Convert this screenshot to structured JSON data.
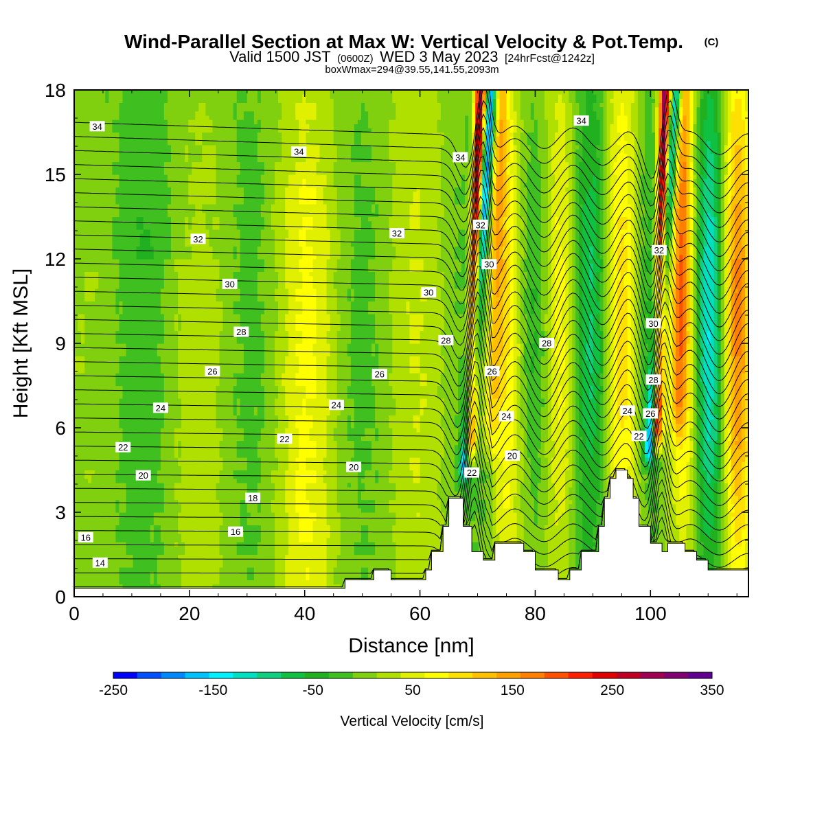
{
  "header": {
    "title": "Wind-Parallel Section at Max W: Vertical Velocity & Pot.Temp.",
    "title_mark": "(C)",
    "valid_prefix": "Valid 1500 JST",
    "valid_zulu": "(0600Z)",
    "valid_date": "WED 3 May 2023",
    "forecast": "[24hrFcst@1242z]",
    "boxinfo": "boxWmax=294@39.55,141.55,2093m"
  },
  "chart_data": {
    "type": "heatmap",
    "title": "Wind-Parallel Section at Max W: Vertical Velocity & Pot.Temp.",
    "xlabel": "Distance [nm]",
    "ylabel": "Height [Kft MSL]",
    "xlim": [
      0,
      117
    ],
    "ylim": [
      0,
      18
    ],
    "x_ticks": [
      "0",
      "20",
      "40",
      "60",
      "80",
      "100"
    ],
    "y_ticks": [
      "0",
      "3",
      "6",
      "9",
      "12",
      "15",
      "18"
    ],
    "x_tick_values": [
      0,
      20,
      40,
      60,
      80,
      100
    ],
    "y_tick_values": [
      0,
      3,
      6,
      9,
      12,
      15,
      18
    ],
    "colorbar": {
      "label": "Vertical Velocity [cm/s]",
      "tick_labels": [
        "-250",
        "-150",
        "-50",
        "50",
        "150",
        "250",
        "350"
      ],
      "min": -250,
      "max": 350,
      "colors": [
        "#0000ff",
        "#0050ff",
        "#0088ff",
        "#00c0ff",
        "#00f0ff",
        "#00e0c0",
        "#10d080",
        "#10c040",
        "#20b020",
        "#40c020",
        "#80d010",
        "#b0e000",
        "#e0f000",
        "#ffff00",
        "#ffe000",
        "#ffc000",
        "#ffa000",
        "#ff8000",
        "#ff5000",
        "#ff2000",
        "#e00000",
        "#c00020",
        "#a00050",
        "#800070",
        "#600090"
      ]
    },
    "terrain": [
      [
        0,
        0.3
      ],
      [
        47,
        0.3
      ],
      [
        47,
        0.6
      ],
      [
        52,
        0.6
      ],
      [
        52,
        0.95
      ],
      [
        55,
        0.95
      ],
      [
        55,
        0.6
      ],
      [
        61,
        0.6
      ],
      [
        61,
        0.95
      ],
      [
        62,
        0.95
      ],
      [
        62,
        1.6
      ],
      [
        64,
        1.6
      ],
      [
        64,
        2.5
      ],
      [
        65,
        2.5
      ],
      [
        65,
        3.5
      ],
      [
        66.5,
        3.5
      ],
      [
        66.5,
        3.5
      ],
      [
        67.5,
        3.5
      ],
      [
        67.5,
        2.5
      ],
      [
        69,
        2.5
      ],
      [
        69,
        1.6
      ],
      [
        71,
        1.6
      ],
      [
        71,
        1.3
      ],
      [
        73,
        1.3
      ],
      [
        73,
        1.9
      ],
      [
        78,
        1.9
      ],
      [
        78,
        1.6
      ],
      [
        80,
        1.6
      ],
      [
        80,
        0.95
      ],
      [
        84,
        0.95
      ],
      [
        84,
        0.6
      ],
      [
        86,
        0.6
      ],
      [
        86,
        0.95
      ],
      [
        88,
        0.95
      ],
      [
        88,
        1.6
      ],
      [
        91,
        1.6
      ],
      [
        91,
        2.5
      ],
      [
        92,
        2.5
      ],
      [
        92,
        3.5
      ],
      [
        93,
        3.5
      ],
      [
        93,
        4.2
      ],
      [
        94,
        4.2
      ],
      [
        94,
        4.5
      ],
      [
        96,
        4.5
      ],
      [
        96,
        4.2
      ],
      [
        97,
        4.2
      ],
      [
        97,
        3.5
      ],
      [
        98,
        3.5
      ],
      [
        98,
        2.5
      ],
      [
        100,
        2.5
      ],
      [
        100,
        1.9
      ],
      [
        102,
        1.9
      ],
      [
        102,
        1.6
      ],
      [
        103,
        1.6
      ],
      [
        103,
        1.9
      ],
      [
        106,
        1.9
      ],
      [
        106,
        1.6
      ],
      [
        108,
        1.6
      ],
      [
        108,
        1.3
      ],
      [
        110,
        1.3
      ],
      [
        110,
        0.95
      ],
      [
        117,
        0.95
      ]
    ],
    "updrafts": [
      {
        "x_top": 70.5,
        "x_bottom": 68.5,
        "y_bottom": 4.3,
        "peak": 300
      },
      {
        "x_top": 102.5,
        "x_bottom": 101,
        "y_bottom": 4.8,
        "peak": 294
      }
    ],
    "downdrafts": [
      {
        "x_top": 72.5,
        "x_bottom": 67.5,
        "y_bottom": 3.7,
        "peak": -210
      },
      {
        "x_top": 104.5,
        "x_bottom": 99.5,
        "y_bottom": 4.3,
        "peak": -180
      }
    ],
    "isentrope_labels": [
      {
        "text": "34",
        "x": 4,
        "y": 16.7
      },
      {
        "text": "34",
        "x": 39,
        "y": 15.8
      },
      {
        "text": "34",
        "x": 67,
        "y": 15.6
      },
      {
        "text": "34",
        "x": 88,
        "y": 16.9
      },
      {
        "text": "32",
        "x": 21.5,
        "y": 12.7
      },
      {
        "text": "32",
        "x": 56,
        "y": 12.9
      },
      {
        "text": "32",
        "x": 70.5,
        "y": 13.2
      },
      {
        "text": "32",
        "x": 101.5,
        "y": 12.3
      },
      {
        "text": "30",
        "x": 27,
        "y": 11.1
      },
      {
        "text": "30",
        "x": 61.5,
        "y": 10.8
      },
      {
        "text": "30",
        "x": 72,
        "y": 11.8
      },
      {
        "text": "30",
        "x": 100.5,
        "y": 9.7
      },
      {
        "text": "28",
        "x": 29,
        "y": 9.4
      },
      {
        "text": "28",
        "x": 64.5,
        "y": 9.1
      },
      {
        "text": "28",
        "x": 82,
        "y": 9.0
      },
      {
        "text": "28",
        "x": 100.5,
        "y": 7.7
      },
      {
        "text": "26",
        "x": 24,
        "y": 8.0
      },
      {
        "text": "26",
        "x": 53,
        "y": 7.9
      },
      {
        "text": "26",
        "x": 72.5,
        "y": 8.0
      },
      {
        "text": "26",
        "x": 100,
        "y": 6.5
      },
      {
        "text": "24",
        "x": 15,
        "y": 6.7
      },
      {
        "text": "24",
        "x": 45.5,
        "y": 6.8
      },
      {
        "text": "24",
        "x": 75,
        "y": 6.4
      },
      {
        "text": "24",
        "x": 96,
        "y": 6.6
      },
      {
        "text": "22",
        "x": 8.5,
        "y": 5.3
      },
      {
        "text": "22",
        "x": 36.5,
        "y": 5.6
      },
      {
        "text": "22",
        "x": 69,
        "y": 4.4
      },
      {
        "text": "22",
        "x": 98,
        "y": 5.7
      },
      {
        "text": "20",
        "x": 12,
        "y": 4.3
      },
      {
        "text": "20",
        "x": 48.5,
        "y": 4.6
      },
      {
        "text": "20",
        "x": 76,
        "y": 5.0
      },
      {
        "text": "18",
        "x": 31,
        "y": 3.5
      },
      {
        "text": "16",
        "x": 2,
        "y": 2.1
      },
      {
        "text": "16",
        "x": 28,
        "y": 2.3
      },
      {
        "text": "14",
        "x": 4.5,
        "y": 1.2
      }
    ]
  }
}
